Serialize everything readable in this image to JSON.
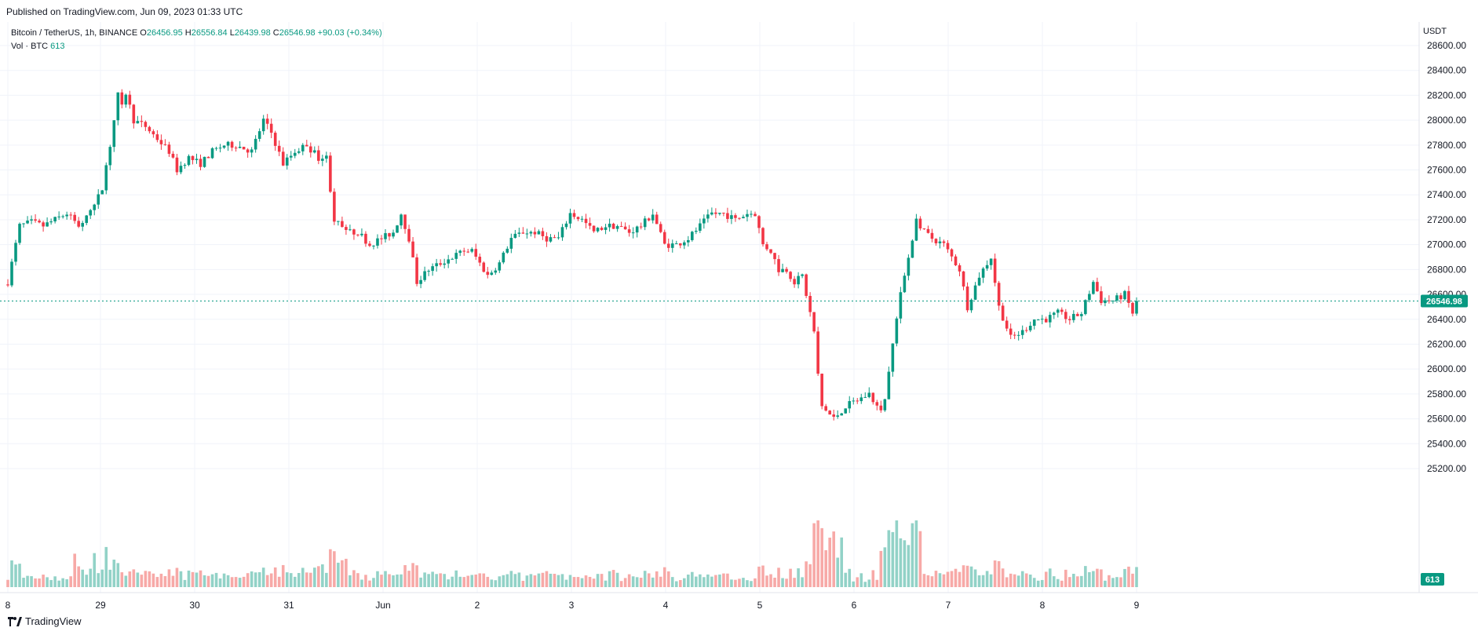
{
  "published": "Published on TradingView.com, Jun 09, 2023 01:33 UTC",
  "legend": {
    "symbol": "Bitcoin / TetherUS, 1h, BINANCE",
    "o_label": "O",
    "o": "26456.95",
    "h_label": "H",
    "h": "26556.84",
    "l_label": "L",
    "l": "26439.98",
    "c_label": "C",
    "c": "26546.98",
    "change": "+90.03 (+0.34%)",
    "vol_label": "Vol · BTC",
    "vol": "613"
  },
  "axis_unit": "USDT",
  "last_price_label": "26546.98",
  "last_volume_label": "613",
  "footer": "TradingView",
  "colors": {
    "up": "#089981",
    "down": "#f23645",
    "up_vol": "#92d2c7",
    "down_vol": "#f7a9a7",
    "grid": "#f0f3fa"
  },
  "chart_data": {
    "type": "candlestick",
    "interval": "1h",
    "y_axis_ticks": [
      "25200.00",
      "25400.00",
      "25600.00",
      "25800.00",
      "26000.00",
      "26200.00",
      "26400.00",
      "26600.00",
      "26800.00",
      "27000.00",
      "27200.00",
      "27400.00",
      "27600.00",
      "27800.00",
      "28000.00",
      "28200.00",
      "28400.00",
      "28600.00"
    ],
    "ylim": [
      25000,
      28700
    ],
    "x_axis_ticks": [
      "8",
      "29",
      "30",
      "31",
      "Jun",
      "2",
      "3",
      "4",
      "5",
      "6",
      "7",
      "8",
      "9"
    ],
    "last_price": 26546.98,
    "price_path": [
      [
        0,
        26700
      ],
      [
        3,
        27150
      ],
      [
        6,
        27180
      ],
      [
        9,
        27150
      ],
      [
        12,
        27200
      ],
      [
        15,
        27250
      ],
      [
        18,
        27150
      ],
      [
        21,
        27250
      ],
      [
        24,
        27450
      ],
      [
        26,
        27800
      ],
      [
        28,
        28200
      ],
      [
        29,
        28100
      ],
      [
        30,
        28220
      ],
      [
        32,
        28000
      ],
      [
        35,
        27950
      ],
      [
        38,
        27850
      ],
      [
        41,
        27750
      ],
      [
        43,
        27600
      ],
      [
        46,
        27700
      ],
      [
        49,
        27650
      ],
      [
        52,
        27750
      ],
      [
        55,
        27800
      ],
      [
        58,
        27800
      ],
      [
        62,
        27750
      ],
      [
        65,
        28000
      ],
      [
        67,
        27900
      ],
      [
        70,
        27650
      ],
      [
        73,
        27750
      ],
      [
        76,
        27800
      ],
      [
        79,
        27700
      ],
      [
        81,
        27700
      ],
      [
        83,
        27200
      ],
      [
        86,
        27100
      ],
      [
        89,
        27100
      ],
      [
        92,
        27000
      ],
      [
        95,
        27050
      ],
      [
        98,
        27100
      ],
      [
        100,
        27250
      ],
      [
        102,
        27050
      ],
      [
        104,
        26700
      ],
      [
        107,
        26800
      ],
      [
        110,
        26850
      ],
      [
        113,
        26900
      ],
      [
        116,
        26950
      ],
      [
        118,
        26950
      ],
      [
        120,
        26850
      ],
      [
        122,
        26750
      ],
      [
        125,
        26850
      ],
      [
        128,
        27050
      ],
      [
        131,
        27100
      ],
      [
        134,
        27100
      ],
      [
        137,
        27050
      ],
      [
        140,
        27050
      ],
      [
        143,
        27250
      ],
      [
        146,
        27200
      ],
      [
        149,
        27100
      ],
      [
        152,
        27150
      ],
      [
        155,
        27150
      ],
      [
        158,
        27100
      ],
      [
        161,
        27150
      ],
      [
        164,
        27250
      ],
      [
        167,
        27000
      ],
      [
        170,
        27000
      ],
      [
        173,
        27050
      ],
      [
        176,
        27150
      ],
      [
        179,
        27250
      ],
      [
        182,
        27250
      ],
      [
        185,
        27200
      ],
      [
        188,
        27250
      ],
      [
        190,
        27250
      ],
      [
        192,
        27000
      ],
      [
        194,
        26950
      ],
      [
        196,
        26800
      ],
      [
        198,
        26800
      ],
      [
        200,
        26700
      ],
      [
        202,
        26750
      ],
      [
        205,
        26300
      ],
      [
        206,
        25950
      ],
      [
        207,
        25700
      ],
      [
        210,
        25600
      ],
      [
        213,
        25700
      ],
      [
        216,
        25750
      ],
      [
        219,
        25800
      ],
      [
        222,
        25650
      ],
      [
        223,
        25750
      ],
      [
        225,
        26200
      ],
      [
        227,
        26600
      ],
      [
        229,
        26900
      ],
      [
        231,
        27200
      ],
      [
        233,
        27100
      ],
      [
        235,
        27050
      ],
      [
        238,
        27000
      ],
      [
        240,
        26900
      ],
      [
        242,
        26800
      ],
      [
        244,
        26500
      ],
      [
        247,
        26750
      ],
      [
        250,
        26900
      ],
      [
        252,
        26500
      ],
      [
        255,
        26250
      ],
      [
        258,
        26300
      ],
      [
        261,
        26400
      ],
      [
        264,
        26400
      ],
      [
        267,
        26450
      ],
      [
        270,
        26400
      ],
      [
        273,
        26450
      ],
      [
        276,
        26700
      ],
      [
        278,
        26550
      ],
      [
        281,
        26550
      ],
      [
        284,
        26600
      ],
      [
        286,
        26450
      ],
      [
        287,
        26547
      ]
    ],
    "volume_pattern": "volume bars below price chart; large spikes near May 28-29, May 31, Jun 5-6 (crash), Jun 6-7 (rebound)",
    "last_volume": 613
  }
}
